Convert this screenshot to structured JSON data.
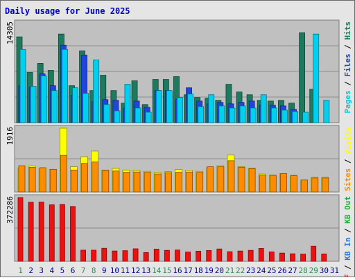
{
  "chart_data": [
    {
      "type": "bar",
      "title": "Daily usage for June 2025",
      "categories": [
        "1",
        "2",
        "3",
        "4",
        "5",
        "6",
        "7",
        "8",
        "9",
        "10",
        "11",
        "12",
        "13",
        "14",
        "15",
        "16",
        "17",
        "18",
        "19",
        "20",
        "21",
        "22",
        "23",
        "24",
        "25",
        "26",
        "27",
        "28",
        "29",
        "30",
        "31"
      ],
      "weekend_days": [
        "1",
        "7",
        "8",
        "14",
        "15",
        "21",
        "22",
        "28",
        "29"
      ],
      "ymax_label": "14305",
      "ylim": [
        0,
        14305
      ],
      "legend": [
        "Pages",
        "Files",
        "Hits"
      ],
      "series": [
        {
          "name": "Hits",
          "color": "#1E7A5E",
          "values": [
            12300,
            7200,
            8500,
            7500,
            12700,
            5300,
            10300,
            4600,
            6800,
            4600,
            2800,
            6000,
            2600,
            6200,
            6200,
            6600,
            4000,
            3600,
            3500,
            3200,
            5500,
            4400,
            4000,
            3200,
            3100,
            3200,
            2800,
            12900,
            4800,
            0,
            0
          ]
        },
        {
          "name": "Files",
          "color": "#2244DD",
          "values": [
            5300,
            5100,
            7000,
            5300,
            11100,
            3900,
            9700,
            3000,
            3300,
            3200,
            2100,
            3100,
            2200,
            4600,
            4600,
            3400,
            5000,
            3100,
            2700,
            2900,
            2700,
            2900,
            3100,
            2500,
            2500,
            2400,
            1900,
            0,
            0,
            0,
            0
          ]
        },
        {
          "name": "Pages",
          "color": "#00D0F0",
          "values": [
            10500,
            5200,
            6700,
            4600,
            10500,
            5000,
            4200,
            9000,
            2600,
            1700,
            5500,
            2100,
            1500,
            4600,
            4600,
            3600,
            4100,
            2300,
            4000,
            2400,
            2100,
            2400,
            2100,
            4000,
            2100,
            1800,
            1600,
            1500,
            12700,
            3200,
            0
          ]
        }
      ]
    },
    {
      "type": "bar",
      "ymax_label": "1916",
      "ylim": [
        0,
        1916
      ],
      "legend": [
        "Sites",
        "Visits"
      ],
      "series": [
        {
          "name": "Visits",
          "color": "#FFFF00",
          "values": [
            720,
            780,
            700,
            680,
            1916,
            760,
            1060,
            1230,
            660,
            710,
            660,
            650,
            620,
            590,
            610,
            680,
            650,
            620,
            730,
            790,
            1110,
            760,
            720,
            540,
            510,
            550,
            500,
            360,
            440,
            440,
            0
          ]
        },
        {
          "name": "Sites",
          "color": "#FF8C00",
          "values": [
            790,
            740,
            730,
            680,
            1100,
            660,
            860,
            900,
            650,
            630,
            590,
            600,
            590,
            540,
            580,
            590,
            600,
            590,
            760,
            760,
            940,
            740,
            700,
            500,
            500,
            550,
            490,
            360,
            420,
            420,
            0
          ]
        }
      ]
    },
    {
      "type": "bar",
      "ymax_label": "372286",
      "ylim": [
        0,
        372286
      ],
      "legend": [
        "KB F",
        "KB In",
        "KB Out"
      ],
      "series": [
        {
          "name": "KB F",
          "color": "#EE1111",
          "values": [
            372286,
            345000,
            346000,
            330000,
            332000,
            320000,
            65000,
            65000,
            76000,
            60000,
            62000,
            73000,
            51000,
            71000,
            64000,
            66000,
            54000,
            59000,
            63000,
            72000,
            56000,
            60000,
            64000,
            75000,
            55000,
            48000,
            44000,
            42000,
            88000,
            43000,
            0
          ]
        }
      ]
    }
  ],
  "legend_colors": {
    "Pages": "#00C8D8",
    "Files": "#2040D0",
    "Hits": "#1E7A5E",
    "Sites": "#FF8C00",
    "Visits": "#FFFF00",
    "KB F": "#EE1111",
    "KB In": "#3377DD",
    "KB Out": "#22AA33"
  },
  "colors": {
    "weekday_label": "#000088",
    "weekend_label": "#2E8B57",
    "panel_bg": "#C0C0C0",
    "frame_bg": "#E5E5E5"
  }
}
